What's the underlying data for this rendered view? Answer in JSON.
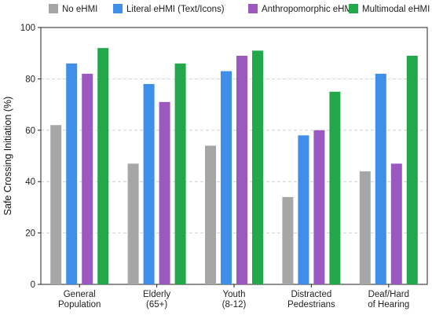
{
  "chart_data": {
    "type": "bar",
    "title": "",
    "ylabel": "Safe Crossing Initiation (%)",
    "xlabel": "",
    "ylim": [
      0,
      100
    ],
    "yticks": [
      0,
      20,
      40,
      60,
      80,
      100
    ],
    "grid": "horizontal dashed",
    "legend_placement": "top",
    "categories": [
      [
        "General",
        "Population"
      ],
      [
        "Elderly",
        "(65+)"
      ],
      [
        "Youth",
        "(8-12)"
      ],
      [
        "Distracted",
        "Pedestrians"
      ],
      [
        "Deaf/Hard",
        "of Hearing"
      ]
    ],
    "series": [
      {
        "name": "No eHMI",
        "color": "#a6a6a6",
        "values": [
          62,
          47,
          54,
          34,
          44
        ]
      },
      {
        "name": "Literal eHMI (Text/Icons)",
        "color": "#3d8fea",
        "values": [
          86,
          78,
          83,
          58,
          82
        ]
      },
      {
        "name": "Anthropomorphic eHMI",
        "color": "#9b59c0",
        "values": [
          82,
          71,
          89,
          60,
          47
        ]
      },
      {
        "name": "Multimodal eHMI",
        "color": "#22a84a",
        "values": [
          92,
          86,
          91,
          75,
          89
        ]
      }
    ]
  }
}
